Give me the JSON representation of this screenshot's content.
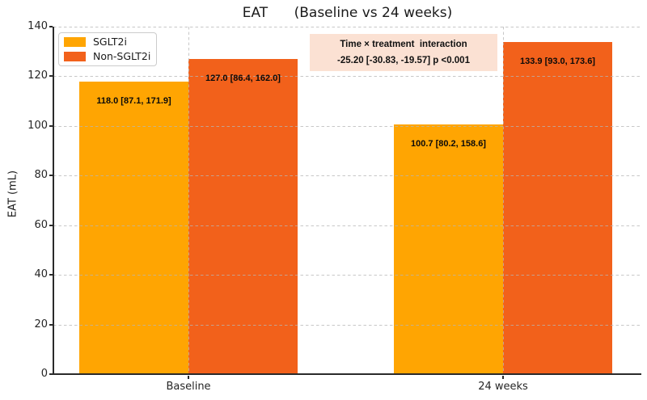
{
  "chart_data": {
    "type": "bar",
    "title": "EAT      (Baseline vs 24 weeks)",
    "ylabel": "EAT (mL)",
    "xlabel": "",
    "ylim": [
      0,
      140
    ],
    "ytick_step": 20,
    "yticks": [
      0,
      20,
      40,
      60,
      80,
      100,
      120,
      140
    ],
    "grid": "dashed-both-axes",
    "legend_position": "upper-left",
    "categories": [
      "Baseline",
      "24 weeks"
    ],
    "series": [
      {
        "name": "SGLT2i",
        "color": "#FFA502",
        "values": [
          118.0,
          100.7
        ],
        "labels": [
          "118.0 [87.1, 171.9]",
          "100.7 [80.2, 158.6]"
        ]
      },
      {
        "name": "Non-SGLT2i",
        "color": "#F2611B",
        "values": [
          127.0,
          133.9
        ],
        "labels": [
          "127.0 [86.4, 162.0]",
          "133.9 [93.0, 173.6]"
        ]
      }
    ],
    "annotation": {
      "line1": "Time × treatment  interaction",
      "line2": "-25.20 [-30.83, -19.57] p <0.001",
      "bg": "#FBE1D3"
    }
  }
}
